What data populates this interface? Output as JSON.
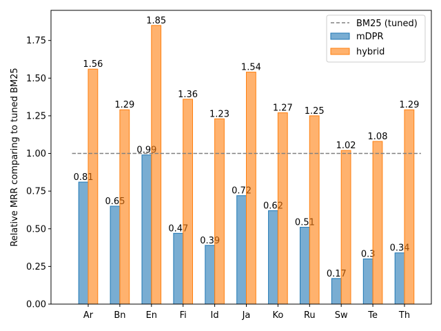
{
  "chart_data": {
    "type": "bar",
    "categories": [
      "Ar",
      "Bn",
      "En",
      "Fi",
      "Id",
      "Ja",
      "Ko",
      "Ru",
      "Sw",
      "Te",
      "Th"
    ],
    "series": [
      {
        "name": "mDPR",
        "values": [
          0.81,
          0.65,
          0.99,
          0.47,
          0.39,
          0.72,
          0.62,
          0.51,
          0.17,
          0.3,
          0.34
        ],
        "labels": [
          "0.81",
          "0.65",
          "0.99",
          "0.47",
          "0.39",
          "0.72",
          "0.62",
          "0.51",
          "0.17",
          "0.3",
          "0.34"
        ],
        "color": "#1f77b4"
      },
      {
        "name": "hybrid",
        "values": [
          1.56,
          1.29,
          1.85,
          1.36,
          1.23,
          1.54,
          1.27,
          1.25,
          1.02,
          1.08,
          1.29
        ],
        "labels": [
          "1.56",
          "1.29",
          "1.85",
          "1.36",
          "1.23",
          "1.54",
          "1.27",
          "1.25",
          "1.02",
          "1.08",
          "1.29"
        ],
        "color": "#ff7f0e"
      }
    ],
    "reference_line": {
      "name": "BM25 (tuned)",
      "value": 1.0,
      "style": "dashed",
      "color": "#808080"
    },
    "xlabel": "",
    "ylabel": "Relative MRR comparing to tuned BM25",
    "ylim": [
      0,
      1.95
    ],
    "yticks": [
      0.0,
      0.25,
      0.5,
      0.75,
      1.0,
      1.25,
      1.5,
      1.75
    ],
    "ytick_labels": [
      "0.00",
      "0.25",
      "0.50",
      "0.75",
      "1.00",
      "1.25",
      "1.50",
      "1.75"
    ],
    "legend": {
      "placement": "top-right",
      "entries": [
        "BM25 (tuned)",
        "mDPR",
        "hybrid"
      ]
    },
    "grid": false
  }
}
